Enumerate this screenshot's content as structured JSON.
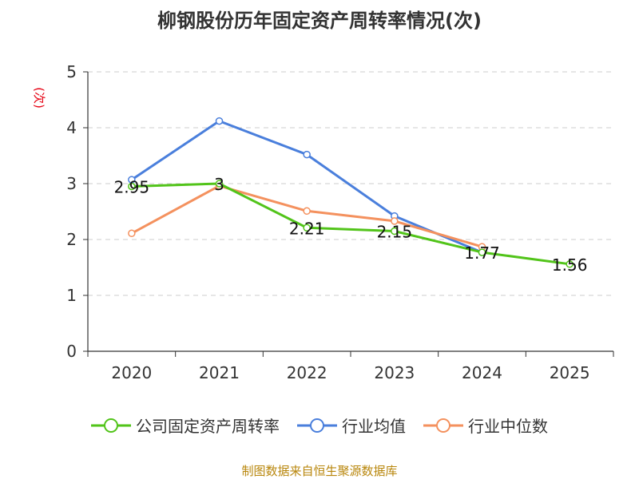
{
  "chart_data": {
    "type": "line",
    "title": "柳钢股份历年固定资产周转率情况(次)",
    "ylabel": "(次)",
    "xlabel": "",
    "categories": [
      "2020",
      "2021",
      "2022",
      "2023",
      "2024",
      "2025"
    ],
    "ylim": [
      0,
      5
    ],
    "yticks": [
      0,
      1,
      2,
      3,
      4,
      5
    ],
    "series": [
      {
        "name": "公司固定资产周转率",
        "color": "#52c41a",
        "values": [
          2.95,
          3,
          2.21,
          2.15,
          1.77,
          1.56
        ],
        "labels": [
          "2.95",
          "3",
          "2.21",
          "2.15",
          "1.77",
          "1.56"
        ]
      },
      {
        "name": "行业均值",
        "color": "#4a7fdc",
        "values": [
          3.07,
          4.12,
          3.52,
          2.42,
          1.77,
          null
        ]
      },
      {
        "name": "行业中位数",
        "color": "#f4915e",
        "values": [
          2.11,
          2.96,
          2.51,
          2.33,
          1.87,
          null
        ]
      }
    ],
    "grid": true,
    "legend": "bottom",
    "source": "制图数据来自恒生聚源数据库"
  }
}
